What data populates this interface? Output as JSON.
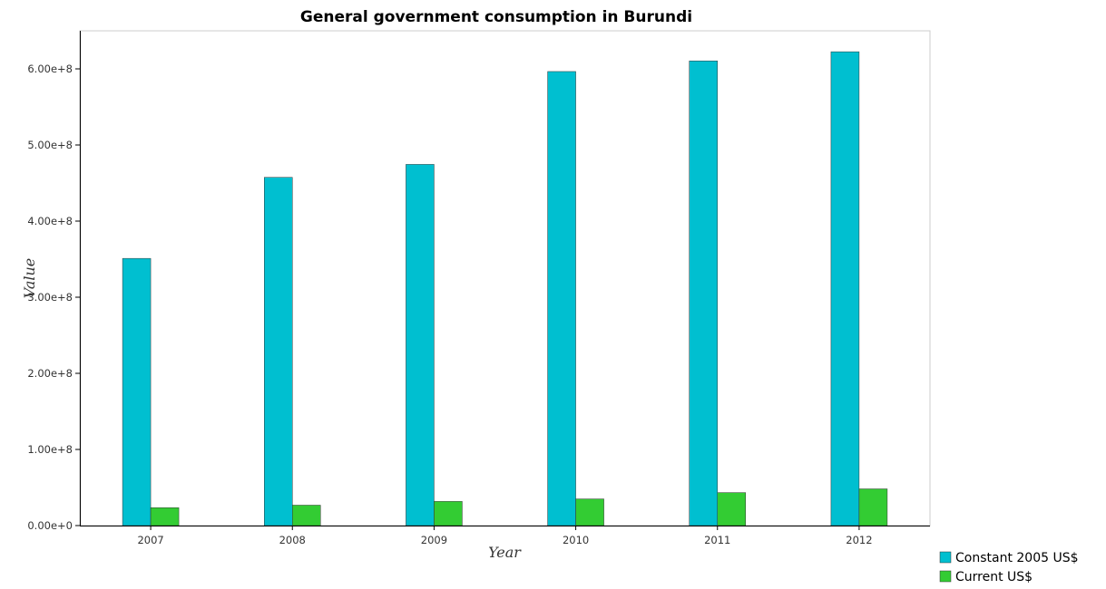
{
  "chart_data": {
    "type": "bar",
    "title": "General government consumption in Burundi",
    "xlabel": "Year",
    "ylabel": "Value",
    "categories": [
      "2007",
      "2008",
      "2009",
      "2010",
      "2011",
      "2012"
    ],
    "series": [
      {
        "name": "Constant 2005 US$",
        "color": "#00bfd0",
        "values": [
          351000000,
          457500000,
          474500000,
          596500000,
          610500000,
          622500000
        ]
      },
      {
        "name": "Current US$",
        "color": "#33cc33",
        "values": [
          23500000,
          26800000,
          31700000,
          35000000,
          43300000,
          48200000
        ]
      }
    ],
    "ylim": [
      0,
      650000000
    ],
    "yticks": [
      0,
      100000000,
      200000000,
      300000000,
      400000000,
      500000000,
      600000000
    ],
    "ytick_labels": [
      "0.00e+0",
      "1.00e+8",
      "2.00e+8",
      "3.00e+8",
      "4.00e+8",
      "5.00e+8",
      "6.00e+8"
    ],
    "grid": false,
    "legend_position": "bottom-right"
  }
}
